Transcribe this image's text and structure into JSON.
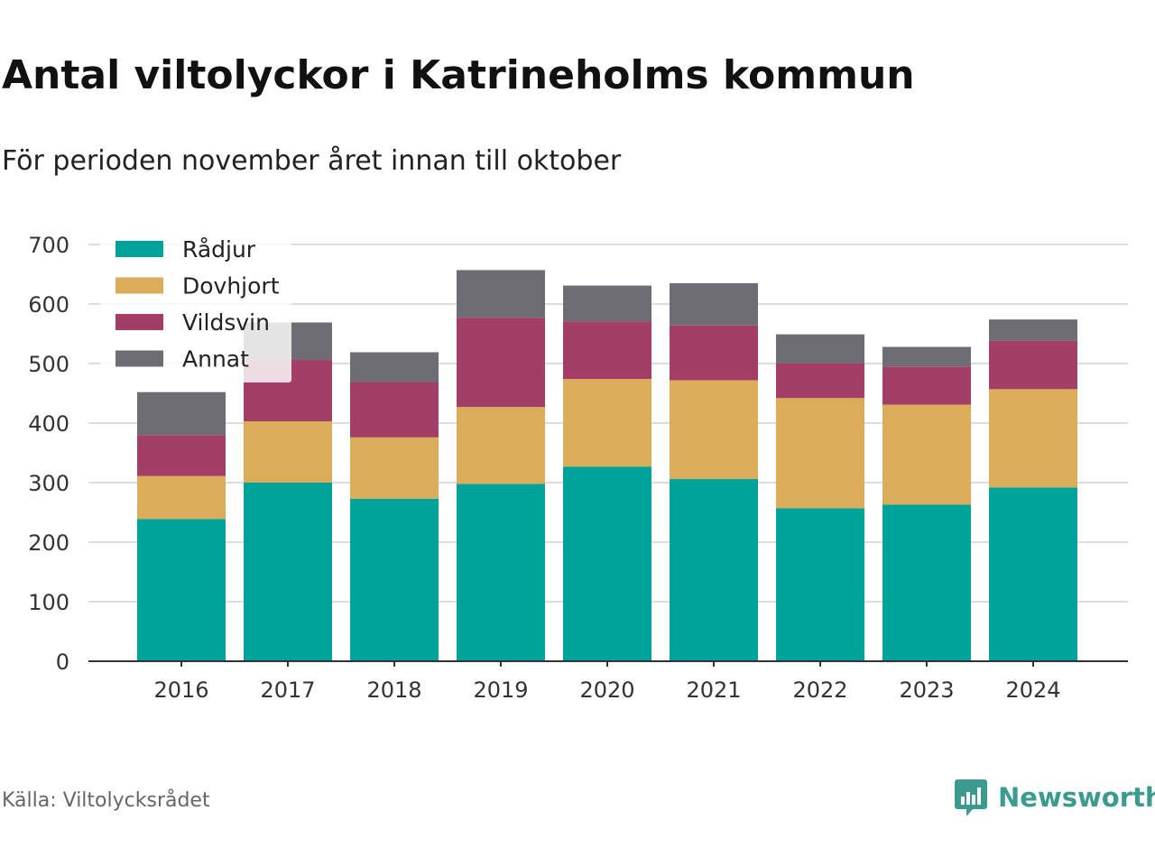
{
  "title": "Antal viltolyckor i Katrineholms kommun",
  "subtitle": "För perioden november året innan till oktober",
  "source": "Källa: Viltolycksrådet",
  "brand": {
    "name": "Newsworthy",
    "icon": "newsworthy-logo-icon",
    "color": "#3b9b8e"
  },
  "chart_data": {
    "type": "bar",
    "stacked": true,
    "categories": [
      "2016",
      "2017",
      "2018",
      "2019",
      "2020",
      "2021",
      "2022",
      "2023",
      "2024"
    ],
    "series": [
      {
        "name": "Rådjur",
        "color": "#00a39a",
        "values": [
          239,
          300,
          273,
          298,
          327,
          306,
          257,
          263,
          292
        ]
      },
      {
        "name": "Dovhjort",
        "color": "#dbac5a",
        "values": [
          72,
          103,
          103,
          129,
          147,
          166,
          185,
          168,
          165
        ]
      },
      {
        "name": "Vildsvin",
        "color": "#a33f66",
        "values": [
          69,
          103,
          93,
          150,
          97,
          92,
          58,
          64,
          81
        ]
      },
      {
        "name": "Annat",
        "color": "#6e6d73",
        "values": [
          72,
          63,
          50,
          80,
          60,
          71,
          49,
          33,
          36
        ]
      }
    ],
    "ylim": [
      0,
      700
    ],
    "yticks": [
      0,
      100,
      200,
      300,
      400,
      500,
      600,
      700
    ],
    "grid": true,
    "legend": "top-left"
  }
}
